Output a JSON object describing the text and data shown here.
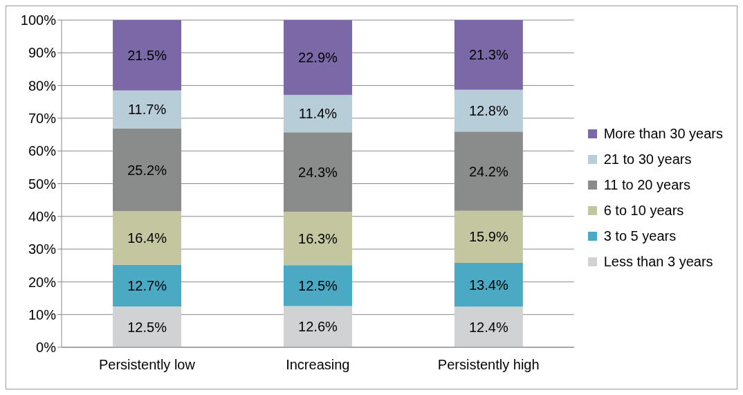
{
  "chart_data": {
    "type": "bar",
    "stacked": true,
    "categories": [
      "Persistently low",
      "Increasing",
      "Persistently high"
    ],
    "series": [
      {
        "name": "Less than 3 years",
        "color": "#d0d2d4",
        "values": [
          12.5,
          12.6,
          12.4
        ],
        "value_labels": [
          "12.5%",
          "12.6%",
          "12.4%"
        ]
      },
      {
        "name": "3 to 5 years",
        "color": "#4aaac4",
        "values": [
          12.7,
          12.5,
          13.4
        ],
        "value_labels": [
          "12.7%",
          "12.5%",
          "13.4%"
        ]
      },
      {
        "name": "6 to 10 years",
        "color": "#c4c6a0",
        "values": [
          16.4,
          16.3,
          15.9
        ],
        "value_labels": [
          "16.4%",
          "16.3%",
          "15.9%"
        ]
      },
      {
        "name": "11 to 20 years",
        "color": "#8a8c8c",
        "values": [
          25.2,
          24.3,
          24.2
        ],
        "value_labels": [
          "25.2%",
          "24.3%",
          "24.2%"
        ]
      },
      {
        "name": "21 to 30 years",
        "color": "#b7cdd8",
        "values": [
          11.7,
          11.4,
          12.8
        ],
        "value_labels": [
          "11.7%",
          "11.4%",
          "12.8%"
        ]
      },
      {
        "name": "More than 30 years",
        "color": "#7b68a6",
        "values": [
          21.5,
          22.9,
          21.3
        ],
        "value_labels": [
          "21.5%",
          "22.9%",
          "21.3%"
        ]
      }
    ],
    "ylim": [
      0,
      100
    ],
    "yticks": [
      {
        "value": 0,
        "label": "0%"
      },
      {
        "value": 10,
        "label": "10%"
      },
      {
        "value": 20,
        "label": "20%"
      },
      {
        "value": 30,
        "label": "30%"
      },
      {
        "value": 40,
        "label": "40%"
      },
      {
        "value": 50,
        "label": "50%"
      },
      {
        "value": 60,
        "label": "60%"
      },
      {
        "value": 70,
        "label": "70%"
      },
      {
        "value": 80,
        "label": "80%"
      },
      {
        "value": 90,
        "label": "90%"
      },
      {
        "value": 100,
        "label": "100%"
      }
    ],
    "grid": "y",
    "legend": "right"
  }
}
